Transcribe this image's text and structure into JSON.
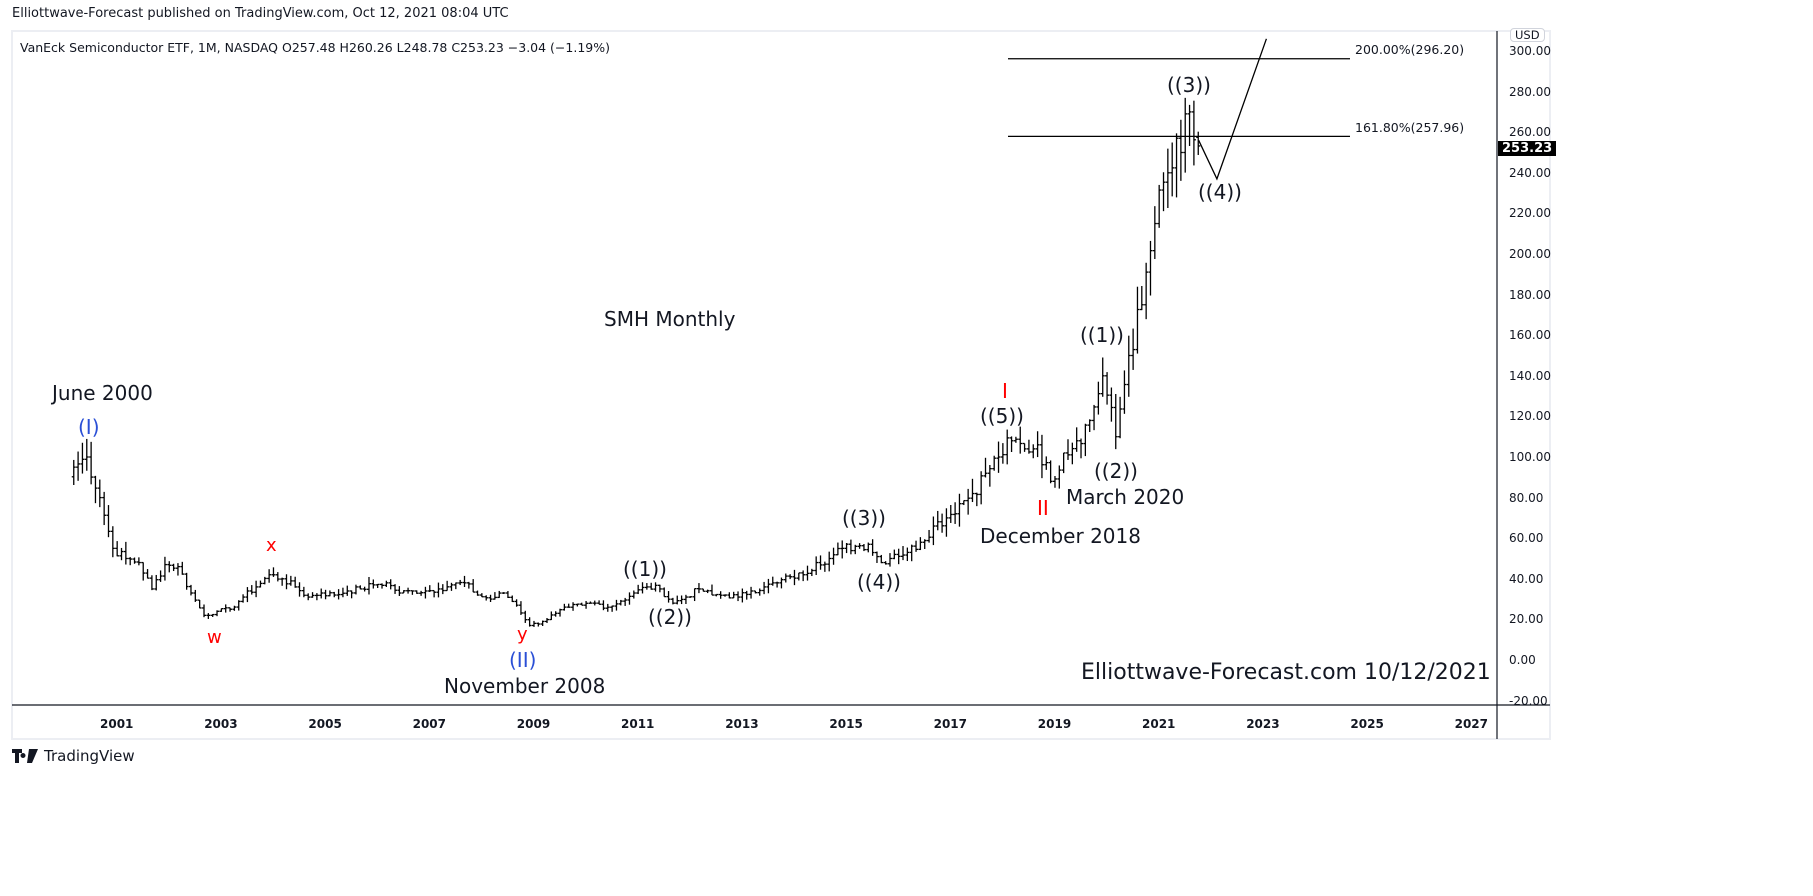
{
  "header": {
    "published": "Elliottwave-Forecast published on TradingView.com, Oct 12, 2021 08:04 UTC",
    "legend": "VanEck Semiconductor ETF, 1M, NASDAQ  O257.48  H260.26  L248.78  C253.23  −3.04 (−1.19%)"
  },
  "price_axis": {
    "currency": "USD",
    "ticks": [
      "300.00",
      "280.00",
      "260.00",
      "240.00",
      "220.00",
      "200.00",
      "180.00",
      "160.00",
      "140.00",
      "120.00",
      "100.00",
      "80.00",
      "60.00",
      "40.00",
      "20.00",
      "0.00",
      "-20.00"
    ],
    "last_price": "253.23"
  },
  "footer": {
    "brand": "TradingView"
  },
  "chart_data": {
    "type": "ohlc",
    "symbol": "SMH",
    "interval": "1M",
    "x_ticks": [
      "2001",
      "2003",
      "2005",
      "2007",
      "2009",
      "2011",
      "2013",
      "2015",
      "2017",
      "2019",
      "2021",
      "2023",
      "2025",
      "2027"
    ],
    "xlim": [
      1999.7,
      2027.6
    ],
    "ylim": [
      -22,
      312
    ],
    "grid": false,
    "last_bar": {
      "date": "2021-10",
      "open": 257.48,
      "high": 260.26,
      "low": 248.78,
      "close": 253.23,
      "change": -3.04,
      "change_pct": -1.19
    },
    "approx_closes": [
      [
        "2000-03",
        95
      ],
      [
        "2000-06",
        100
      ],
      [
        "2000-09",
        80
      ],
      [
        "2000-12",
        55
      ],
      [
        "2001-03",
        50
      ],
      [
        "2001-06",
        48
      ],
      [
        "2001-09",
        35
      ],
      [
        "2001-12",
        47
      ],
      [
        "2002-03",
        46
      ],
      [
        "2002-06",
        33
      ],
      [
        "2002-09",
        22
      ],
      [
        "2002-12",
        24
      ],
      [
        "2003-03",
        25
      ],
      [
        "2003-06",
        31
      ],
      [
        "2003-09",
        36
      ],
      [
        "2003-12",
        42
      ],
      [
        "2004-03",
        40
      ],
      [
        "2004-06",
        36
      ],
      [
        "2004-09",
        31
      ],
      [
        "2004-12",
        33
      ],
      [
        "2005-03",
        32
      ],
      [
        "2005-06",
        34
      ],
      [
        "2005-09",
        35
      ],
      [
        "2005-12",
        37
      ],
      [
        "2006-03",
        38
      ],
      [
        "2006-06",
        33
      ],
      [
        "2006-09",
        34
      ],
      [
        "2006-12",
        34
      ],
      [
        "2007-03",
        35
      ],
      [
        "2007-06",
        37
      ],
      [
        "2007-09",
        38
      ],
      [
        "2007-12",
        32
      ],
      [
        "2008-03",
        30
      ],
      [
        "2008-06",
        33
      ],
      [
        "2008-09",
        27
      ],
      [
        "2008-12",
        17
      ],
      [
        "2009-03",
        19
      ],
      [
        "2009-06",
        23
      ],
      [
        "2009-09",
        26
      ],
      [
        "2009-12",
        27
      ],
      [
        "2010-03",
        28
      ],
      [
        "2010-06",
        26
      ],
      [
        "2010-09",
        29
      ],
      [
        "2010-12",
        33
      ],
      [
        "2011-03",
        36
      ],
      [
        "2011-06",
        35
      ],
      [
        "2011-09",
        28
      ],
      [
        "2011-12",
        31
      ],
      [
        "2012-03",
        35
      ],
      [
        "2012-06",
        32
      ],
      [
        "2012-09",
        32
      ],
      [
        "2012-12",
        31
      ],
      [
        "2013-03",
        34
      ],
      [
        "2013-06",
        36
      ],
      [
        "2013-09",
        38
      ],
      [
        "2013-12",
        41
      ],
      [
        "2014-03",
        42
      ],
      [
        "2014-06",
        48
      ],
      [
        "2014-09",
        50
      ],
      [
        "2014-12",
        55
      ],
      [
        "2015-03",
        56
      ],
      [
        "2015-06",
        57
      ],
      [
        "2015-09",
        48
      ],
      [
        "2015-12",
        52
      ],
      [
        "2016-03",
        53
      ],
      [
        "2016-06",
        58
      ],
      [
        "2016-09",
        66
      ],
      [
        "2016-12",
        70
      ],
      [
        "2017-03",
        77
      ],
      [
        "2017-06",
        82
      ],
      [
        "2017-09",
        92
      ],
      [
        "2017-12",
        100
      ],
      [
        "2018-03",
        108
      ],
      [
        "2018-06",
        104
      ],
      [
        "2018-09",
        106
      ],
      [
        "2018-12",
        88
      ],
      [
        "2019-03",
        102
      ],
      [
        "2019-06",
        108
      ],
      [
        "2019-09",
        118
      ],
      [
        "2019-12",
        140
      ],
      [
        "2020-03",
        110
      ],
      [
        "2020-06",
        150
      ],
      [
        "2020-09",
        175
      ],
      [
        "2020-12",
        215
      ],
      [
        "2021-03",
        240
      ],
      [
        "2021-06",
        250
      ],
      [
        "2021-08",
        270
      ],
      [
        "2021-09",
        256.27
      ],
      [
        "2021-10",
        253.23
      ]
    ],
    "fib_levels": [
      {
        "label": "200.00%(296.20)",
        "value": 296.2
      },
      {
        "label": "161.80%(257.96)",
        "value": 257.96
      }
    ],
    "projection_path": [
      [
        2021.8,
        256
      ],
      [
        2022.15,
        237
      ],
      [
        2023.1,
        306
      ]
    ],
    "annotations": {
      "title": "SMH Monthly",
      "june2000": "June 2000",
      "wI": "(I)",
      "x": "x",
      "w": "w",
      "y": "y",
      "wII": "(II)",
      "nov2008": "November 2008",
      "c1a": "((1))",
      "c2a": "((2))",
      "c3a": "((3))",
      "c4a": "((4))",
      "rI": "I",
      "c5": "((5))",
      "rII": "II",
      "dec2018": "December 2018",
      "c1b": "((1))",
      "c2b": "((2))",
      "mar2020": "March 2020",
      "c3b": "((3))",
      "c4b": "((4))",
      "watermark": "Elliottwave-Forecast.com 10/12/2021"
    },
    "colors": {
      "bars": "#000000",
      "impulse_red": "#ff0000",
      "cycle_blue": "#2a4fd6"
    }
  }
}
